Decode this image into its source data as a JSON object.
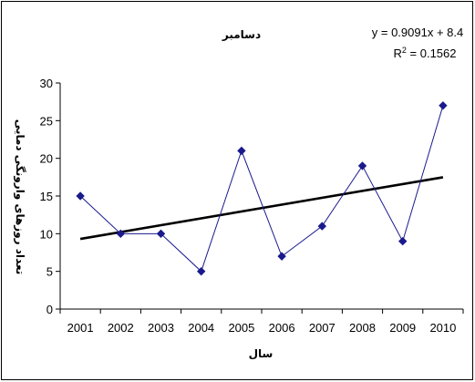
{
  "chart_data": {
    "type": "line",
    "title": "دسامبر",
    "xlabel": "سال",
    "ylabel": "تعداد روزهای وارونگی دمایی",
    "categories": [
      "2001",
      "2002",
      "2003",
      "2004",
      "2005",
      "2006",
      "2007",
      "2008",
      "2009",
      "2010"
    ],
    "series": [
      {
        "values": [
          15,
          10,
          10,
          5,
          21,
          7,
          11,
          19,
          9,
          27
        ],
        "color": "#1a1a8c"
      }
    ],
    "trendline": {
      "equation": "y = 0.9091x + 8.4",
      "r2_prefix": "R",
      "r2_sup": "2",
      "r2_value": " = 0.1562",
      "slope": 0.9091,
      "intercept": 8.4,
      "color": "#000000"
    },
    "ylim": [
      0,
      30
    ],
    "yticks": [
      0,
      5,
      10,
      15,
      20,
      25,
      30
    ],
    "grid": false,
    "legend": "none"
  }
}
